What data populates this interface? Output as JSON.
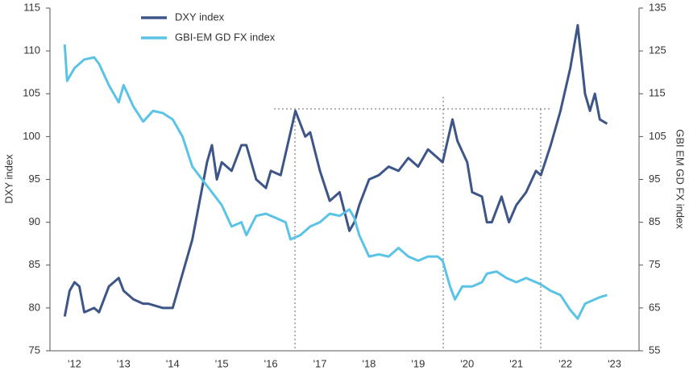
{
  "chart_data": {
    "type": "line",
    "xlim": [
      2012.0,
      2024.0
    ],
    "xticks": [
      {
        "value": 2012.5,
        "label": "'12"
      },
      {
        "value": 2013.5,
        "label": "'13"
      },
      {
        "value": 2014.5,
        "label": "'14"
      },
      {
        "value": 2015.5,
        "label": "'15"
      },
      {
        "value": 2016.5,
        "label": "'16"
      },
      {
        "value": 2017.5,
        "label": "'17"
      },
      {
        "value": 2018.5,
        "label": "'18"
      },
      {
        "value": 2019.5,
        "label": "'19"
      },
      {
        "value": 2020.5,
        "label": "'20"
      },
      {
        "value": 2021.5,
        "label": "'21"
      },
      {
        "value": 2022.5,
        "label": "'22"
      },
      {
        "value": 2023.5,
        "label": "'23"
      }
    ],
    "ylabel": "DXY index",
    "ylim": [
      75,
      115
    ],
    "yticks": [
      75,
      80,
      85,
      90,
      95,
      100,
      105,
      110,
      115
    ],
    "y2label": "GBI EM GD FX index",
    "y2lim": [
      55,
      135
    ],
    "y2ticks": [
      55,
      65,
      75,
      85,
      95,
      105,
      115,
      125,
      135
    ],
    "legend": "upper left",
    "series": [
      {
        "name": "DXY index",
        "color": "#3d5687",
        "x": [
          2012.3,
          2012.4,
          2012.5,
          2012.6,
          2012.7,
          2012.9,
          2013.0,
          2013.2,
          2013.4,
          2013.5,
          2013.7,
          2013.9,
          2014.0,
          2014.3,
          2014.5,
          2014.7,
          2014.9,
          2015.2,
          2015.3,
          2015.4,
          2015.5,
          2015.7,
          2015.9,
          2016.0,
          2016.2,
          2016.4,
          2016.5,
          2016.7,
          2016.8,
          2017.0,
          2017.2,
          2017.3,
          2017.5,
          2017.7,
          2017.9,
          2018.1,
          2018.2,
          2018.3,
          2018.5,
          2018.7,
          2018.9,
          2019.1,
          2019.3,
          2019.5,
          2019.7,
          2019.9,
          2020.0,
          2020.2,
          2020.3,
          2020.5,
          2020.6,
          2020.8,
          2020.9,
          2021.0,
          2021.2,
          2021.35,
          2021.5,
          2021.7,
          2021.9,
          2022.0,
          2022.2,
          2022.4,
          2022.6,
          2022.75,
          2022.9,
          2023.0,
          2023.1,
          2023.2,
          2023.35
        ],
        "values": [
          79,
          82,
          83,
          82.5,
          79.5,
          80,
          79.5,
          82.5,
          83.5,
          82,
          81,
          80.5,
          80.5,
          80,
          80,
          84,
          88,
          97,
          99,
          95,
          97,
          96,
          99,
          99,
          95,
          94,
          96,
          95.5,
          98,
          103,
          100,
          100.5,
          96,
          92.5,
          93.5,
          89,
          90,
          92,
          95,
          95.5,
          96.5,
          96,
          97.5,
          96.5,
          98.5,
          97.5,
          97,
          102,
          99.5,
          97,
          93.5,
          93,
          90,
          90,
          93,
          90,
          92,
          93.5,
          96,
          95.5,
          99,
          103,
          108,
          113,
          105,
          103,
          105,
          102,
          101.5
        ]
      },
      {
        "name": "GBI-EM GD FX index",
        "color": "#5bc3e6",
        "axis": "y2",
        "x": [
          2012.3,
          2012.35,
          2012.5,
          2012.7,
          2012.9,
          2013.0,
          2013.2,
          2013.4,
          2013.5,
          2013.7,
          2013.9,
          2014.1,
          2014.3,
          2014.5,
          2014.7,
          2014.9,
          2015.1,
          2015.3,
          2015.5,
          2015.7,
          2015.9,
          2016.0,
          2016.2,
          2016.4,
          2016.6,
          2016.8,
          2016.9,
          2017.1,
          2017.3,
          2017.5,
          2017.7,
          2017.9,
          2018.1,
          2018.2,
          2018.3,
          2018.5,
          2018.7,
          2018.9,
          2019.1,
          2019.3,
          2019.5,
          2019.7,
          2019.9,
          2020.0,
          2020.15,
          2020.25,
          2020.4,
          2020.6,
          2020.8,
          2020.9,
          2021.1,
          2021.3,
          2021.5,
          2021.7,
          2021.9,
          2022.0,
          2022.2,
          2022.4,
          2022.6,
          2022.75,
          2022.9,
          2023.1,
          2023.2,
          2023.35
        ],
        "values": [
          126.5,
          118,
          121,
          123,
          123.5,
          122,
          117,
          113,
          117,
          112,
          108.5,
          111,
          110.5,
          109,
          105,
          98,
          95,
          92,
          89,
          84,
          85,
          82,
          86.5,
          87,
          86,
          85,
          81,
          82,
          84,
          85,
          87,
          86.5,
          88,
          86,
          82,
          77,
          77.5,
          77,
          79,
          77,
          76,
          77,
          77,
          76,
          70,
          67,
          70,
          70,
          71,
          73,
          73.5,
          72,
          71,
          72,
          71,
          70.5,
          69,
          68,
          64.5,
          62.5,
          66,
          67,
          67.5,
          68
        ]
      }
    ]
  }
}
